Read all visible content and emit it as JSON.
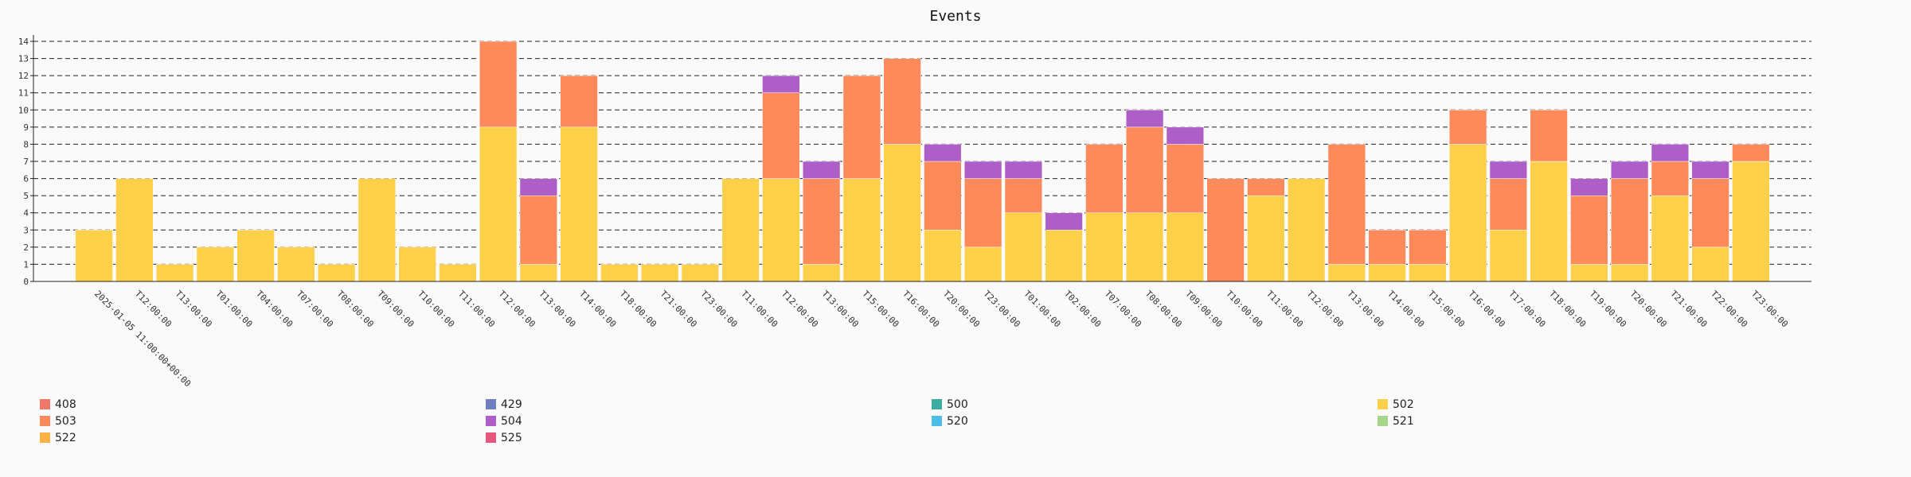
{
  "chart_data": {
    "type": "bar",
    "stacked": true,
    "title": "Events",
    "xlabel": "",
    "ylabel": "",
    "ylim": [
      0,
      14
    ],
    "yticks": [
      0,
      1,
      2,
      3,
      4,
      5,
      6,
      7,
      8,
      9,
      10,
      11,
      12,
      13,
      14
    ],
    "grid": "horizontal-dashed",
    "legend_position": "bottom",
    "categories": [
      "2025-01-05 11:00:00+00:00",
      "T12:00:00",
      "T13:00:00",
      "T01:00:00",
      "T04:00:00",
      "T07:00:00",
      "T08:00:00",
      "T09:00:00",
      "T10:00:00",
      "T11:00:00",
      "T12:00:00",
      "T13:00:00",
      "T14:00:00",
      "T18:00:00",
      "T21:00:00",
      "T23:00:00",
      "T11:00:00",
      "T12:00:00",
      "T13:00:00",
      "T15:00:00",
      "T16:00:00",
      "T20:00:00",
      "T23:00:00",
      "T01:00:00",
      "T02:00:00",
      "T07:00:00",
      "T08:00:00",
      "T09:00:00",
      "T10:00:00",
      "T11:00:00",
      "T12:00:00",
      "T13:00:00",
      "T14:00:00",
      "T15:00:00",
      "T16:00:00",
      "T17:00:00",
      "T18:00:00",
      "T19:00:00",
      "T20:00:00",
      "T21:00:00",
      "T22:00:00",
      "T23:00:00"
    ],
    "bars": [
      {
        "502": 3,
        "503": 0,
        "504": 0
      },
      {
        "502": 6,
        "503": 0,
        "504": 0
      },
      {
        "502": 1,
        "503": 0,
        "504": 0
      },
      {
        "502": 2,
        "503": 0,
        "504": 0
      },
      {
        "502": 3,
        "503": 0,
        "504": 0
      },
      {
        "502": 2,
        "503": 0,
        "504": 0
      },
      {
        "502": 1,
        "503": 0,
        "504": 0
      },
      {
        "502": 6,
        "503": 0,
        "504": 0
      },
      {
        "502": 2,
        "503": 0,
        "504": 0
      },
      {
        "502": 1,
        "503": 0,
        "504": 0
      },
      {
        "502": 9,
        "503": 5,
        "504": 0
      },
      {
        "502": 1,
        "503": 4,
        "504": 1
      },
      {
        "502": 9,
        "503": 3,
        "504": 0
      },
      {
        "502": 1,
        "503": 0,
        "504": 0
      },
      {
        "502": 1,
        "503": 0,
        "504": 0
      },
      {
        "502": 1,
        "503": 0,
        "504": 0
      },
      {
        "502": 6,
        "503": 0,
        "504": 0
      },
      {
        "502": 6,
        "503": 5,
        "504": 1
      },
      {
        "502": 1,
        "503": 5,
        "504": 1
      },
      {
        "502": 6,
        "503": 6,
        "504": 0
      },
      {
        "502": 8,
        "503": 5,
        "504": 0
      },
      {
        "502": 3,
        "503": 4,
        "504": 1
      },
      {
        "502": 2,
        "503": 4,
        "504": 1
      },
      {
        "502": 4,
        "503": 2,
        "504": 1
      },
      {
        "502": 3,
        "503": 0,
        "504": 1
      },
      {
        "502": 4,
        "503": 4,
        "504": 0
      },
      {
        "502": 4,
        "503": 5,
        "504": 1
      },
      {
        "502": 4,
        "503": 4,
        "504": 1
      },
      {
        "502": 0,
        "503": 6,
        "504": 0
      },
      {
        "502": 5,
        "503": 1,
        "504": 0
      },
      {
        "502": 6,
        "503": 0,
        "504": 0
      },
      {
        "502": 1,
        "503": 7,
        "504": 0
      },
      {
        "502": 1,
        "503": 2,
        "504": 0
      },
      {
        "502": 1,
        "503": 2,
        "504": 0
      },
      {
        "502": 8,
        "503": 2,
        "504": 0
      },
      {
        "502": 3,
        "503": 3,
        "504": 1
      },
      {
        "502": 7,
        "503": 3,
        "504": 0
      },
      {
        "502": 1,
        "503": 4,
        "504": 1
      },
      {
        "502": 1,
        "503": 5,
        "504": 1
      },
      {
        "502": 5,
        "503": 2,
        "504": 1
      },
      {
        "502": 2,
        "503": 4,
        "504": 1
      },
      {
        "502": 7,
        "503": 1,
        "504": 0
      }
    ],
    "series_colors": {
      "502": "#fdd049",
      "503": "#fc8a5a",
      "504": "#ae5ec7"
    },
    "legend": [
      {
        "name": "408",
        "color": "#f0786a"
      },
      {
        "name": "429",
        "color": "#6f7fc0"
      },
      {
        "name": "500",
        "color": "#3aaea0"
      },
      {
        "name": "502",
        "color": "#fdd049"
      },
      {
        "name": "503",
        "color": "#fc8a5a"
      },
      {
        "name": "504",
        "color": "#ae5ec7"
      },
      {
        "name": "520",
        "color": "#4bbde6"
      },
      {
        "name": "521",
        "color": "#a6d68a"
      },
      {
        "name": "522",
        "color": "#f9b243"
      },
      {
        "name": "525",
        "color": "#e6577f"
      }
    ]
  }
}
